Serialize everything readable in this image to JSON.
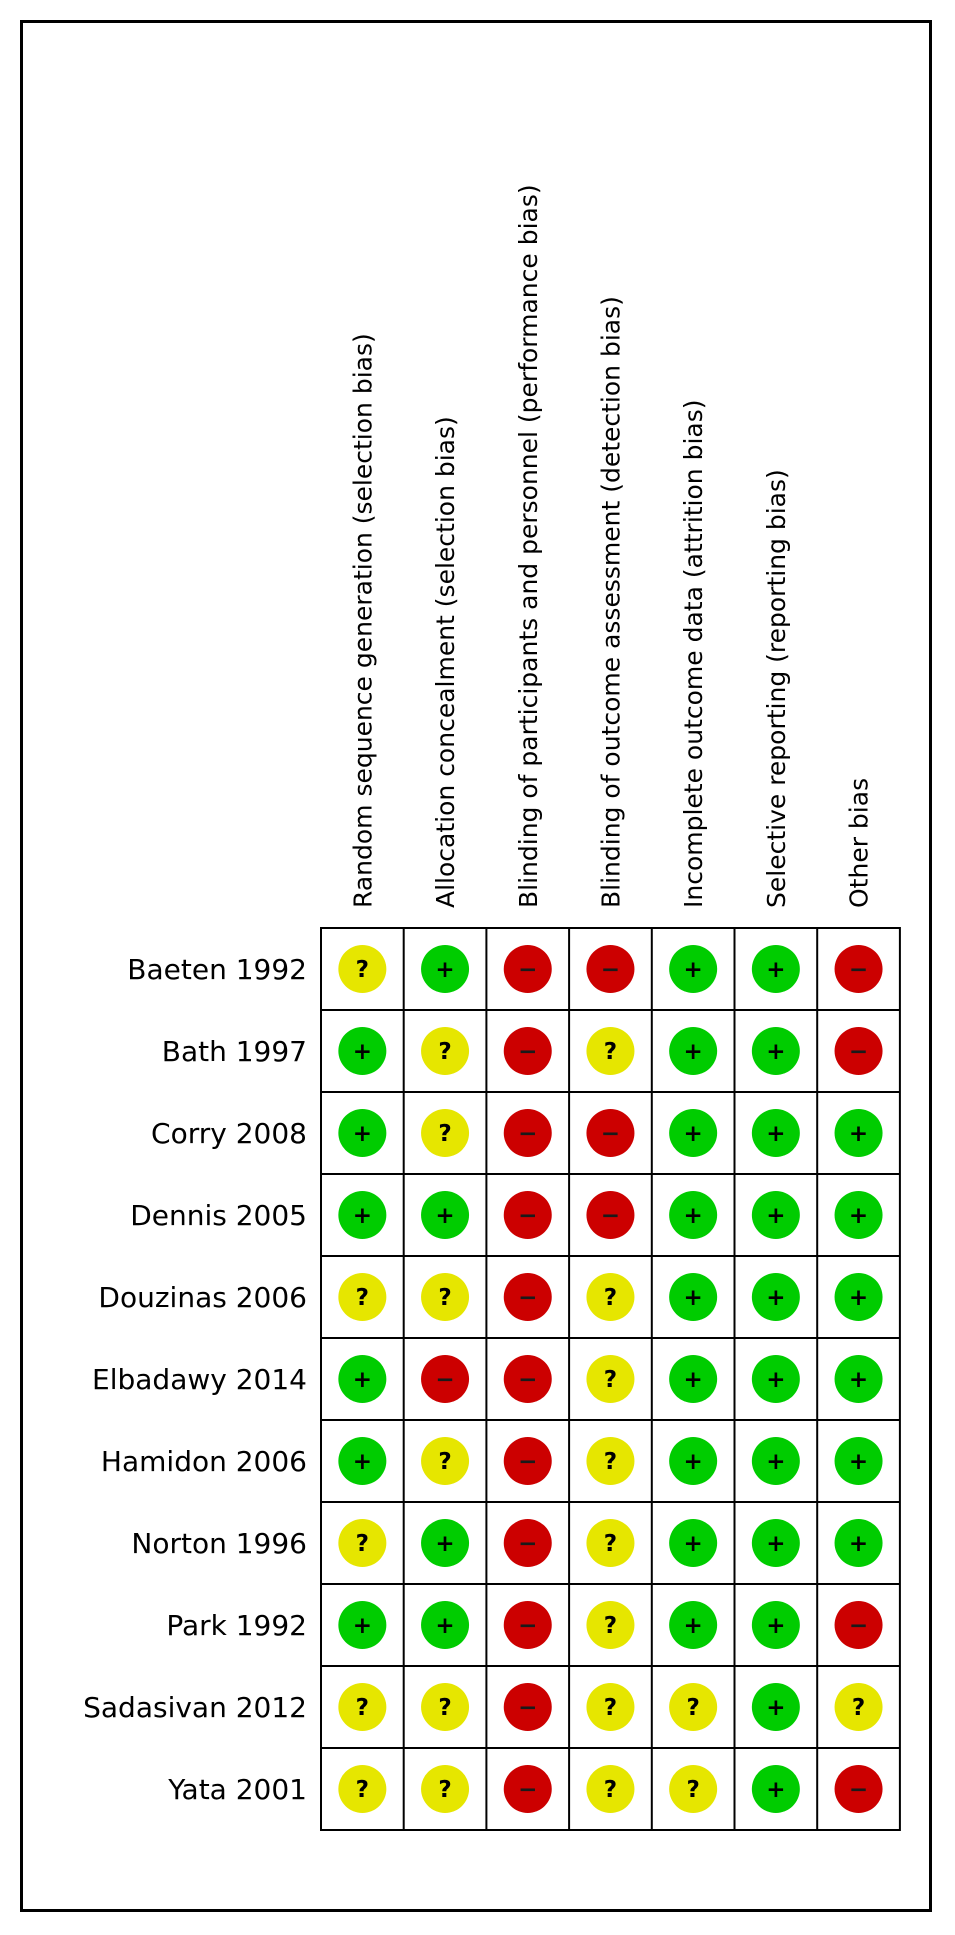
{
  "chart_data": {
    "type": "table",
    "title": "",
    "domains": [
      "Random sequence generation (selection bias)",
      "Allocation concealment (selection bias)",
      "Blinding of participants and personnel (performance bias)",
      "Blinding of outcome assessment (detection bias)",
      "Incomplete outcome data (attrition bias)",
      "Selective reporting (reporting bias)",
      "Other bias"
    ],
    "studies": [
      "Baeten 1992",
      "Bath 1997",
      "Corry 2008",
      "Dennis 2005",
      "Douzinas 2006",
      "Elbadawy 2014",
      "Hamidon 2006",
      "Norton 1996",
      "Park 1992",
      "Sadasivan 2012",
      "Yata 2001"
    ],
    "judgements": [
      [
        "unclear",
        "low",
        "high",
        "high",
        "low",
        "low",
        "high"
      ],
      [
        "low",
        "unclear",
        "high",
        "unclear",
        "low",
        "low",
        "high"
      ],
      [
        "low",
        "unclear",
        "high",
        "high",
        "low",
        "low",
        "low"
      ],
      [
        "low",
        "low",
        "high",
        "high",
        "low",
        "low",
        "low"
      ],
      [
        "unclear",
        "unclear",
        "high",
        "unclear",
        "low",
        "low",
        "low"
      ],
      [
        "low",
        "high",
        "high",
        "unclear",
        "low",
        "low",
        "low"
      ],
      [
        "low",
        "unclear",
        "high",
        "unclear",
        "low",
        "low",
        "low"
      ],
      [
        "unclear",
        "low",
        "high",
        "unclear",
        "low",
        "low",
        "low"
      ],
      [
        "low",
        "low",
        "high",
        "unclear",
        "low",
        "low",
        "high"
      ],
      [
        "unclear",
        "unclear",
        "high",
        "unclear",
        "unclear",
        "low",
        "unclear"
      ],
      [
        "unclear",
        "unclear",
        "high",
        "unclear",
        "unclear",
        "low",
        "high"
      ]
    ],
    "symbols": {
      "low": "+",
      "unclear": "?",
      "high": "−"
    },
    "colors": {
      "low": "#00cc00",
      "unclear": "#e6e600",
      "high": "#cc0000",
      "grid": "#000000"
    }
  }
}
